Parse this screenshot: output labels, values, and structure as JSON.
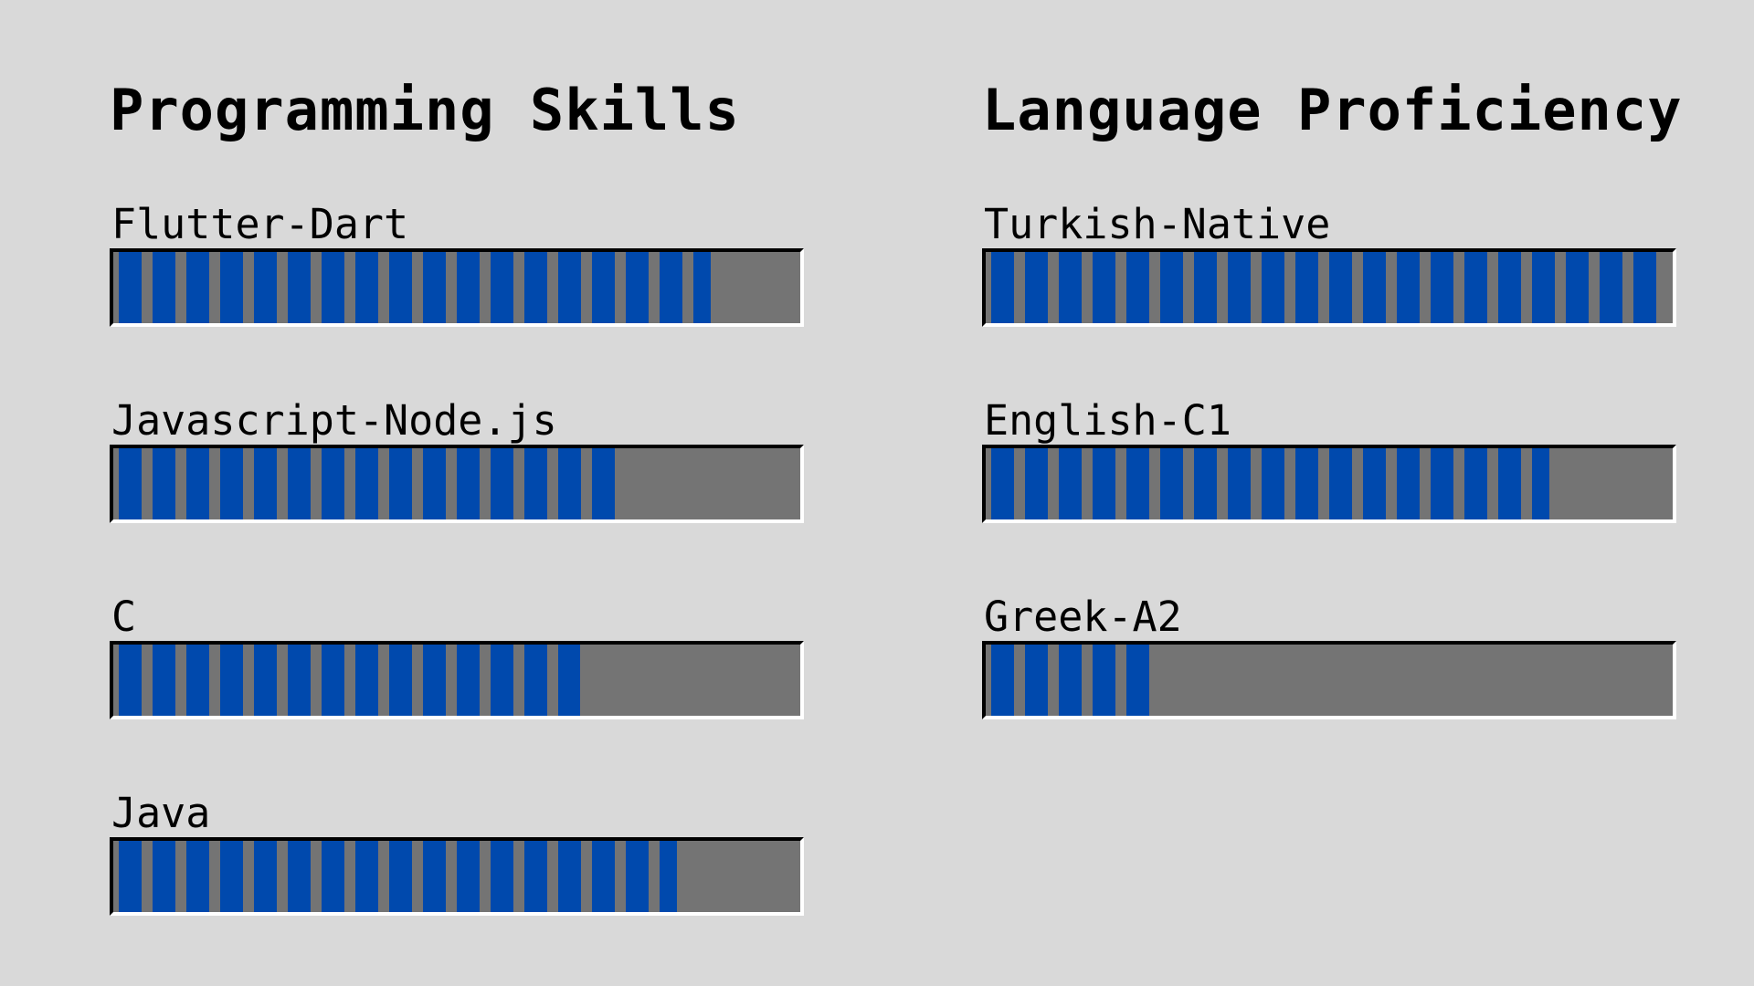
{
  "programming": {
    "title": "Programming Skills",
    "items": [
      {
        "label": "Flutter-Dart",
        "level": 0.87
      },
      {
        "label": "Javascript-Node.js",
        "level": 0.73
      },
      {
        "label": "C",
        "level": 0.68
      },
      {
        "label": "Java",
        "level": 0.82
      }
    ]
  },
  "languages": {
    "title": "Language Proficiency",
    "items": [
      {
        "label": "Turkish-Native",
        "level": 0.98
      },
      {
        "label": "English-C1",
        "level": 0.82
      },
      {
        "label": "Greek-A2",
        "level": 0.24
      }
    ]
  },
  "colors": {
    "background": "#d9d9d9",
    "bar_track": "#747474",
    "bar_fill": "#0049ad"
  }
}
